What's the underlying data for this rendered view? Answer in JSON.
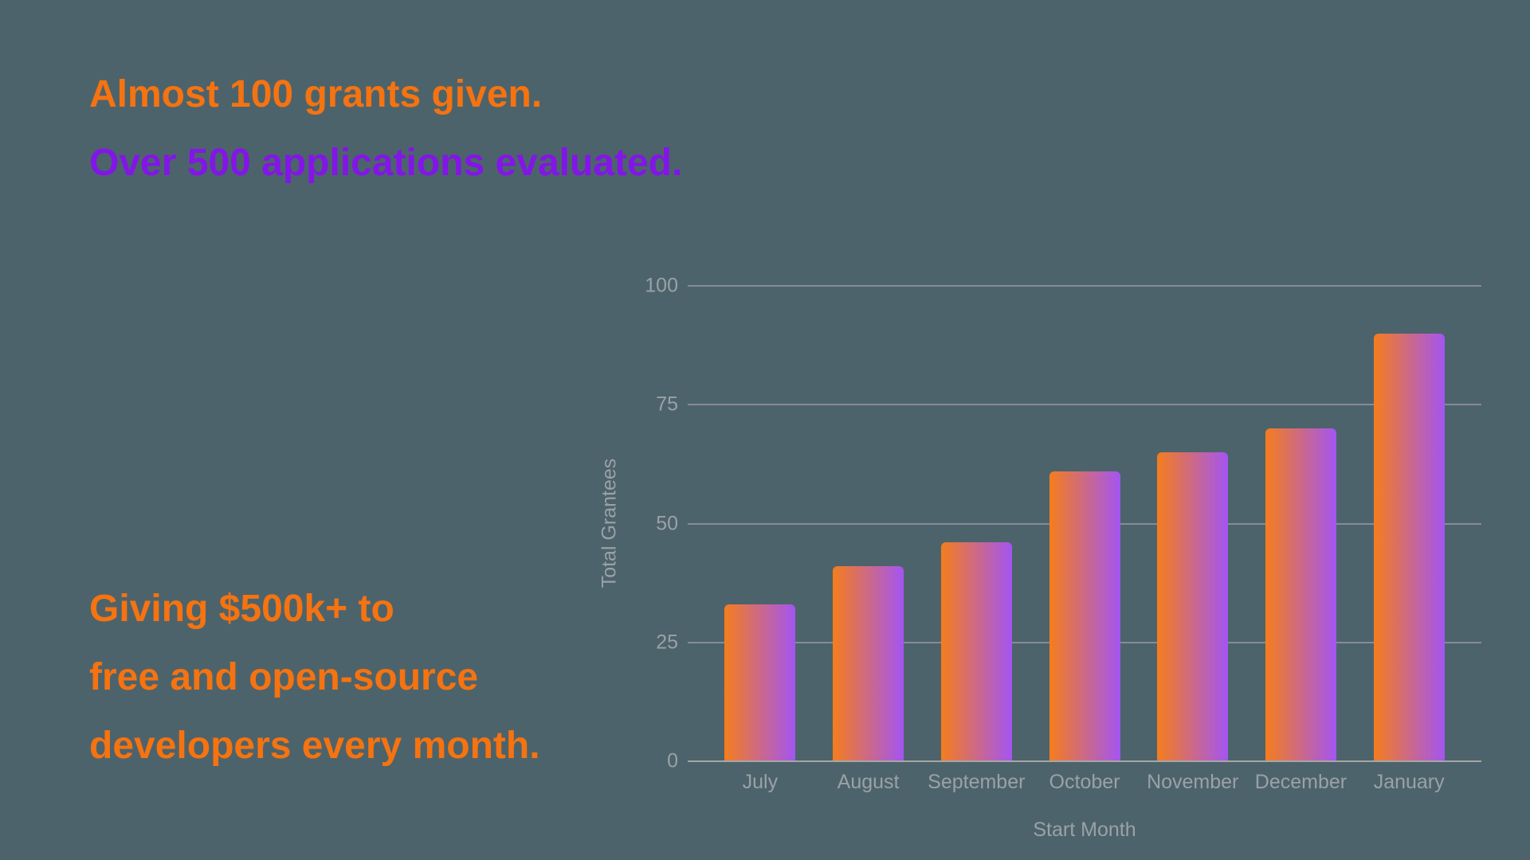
{
  "page": {
    "background_color": "#4d636b"
  },
  "hero": {
    "line1": {
      "text": "Almost 100 grants given.",
      "color": "#f57310"
    },
    "line2": {
      "text": "Over 500 applications evaluated.",
      "color": "#8315e8"
    }
  },
  "footer_block": {
    "color": "#f57310",
    "lines": [
      "Giving $500k+ to",
      "free and open-source",
      "developers every month."
    ]
  },
  "chart_data": {
    "type": "bar",
    "categories": [
      "July",
      "August",
      "September",
      "October",
      "November",
      "December",
      "January"
    ],
    "values": [
      33,
      41,
      46,
      61,
      65,
      70,
      90
    ],
    "title": "",
    "xlabel": "Start Month",
    "ylabel": "Total Grantees",
    "ylim": [
      0,
      100
    ],
    "yticks": [
      0,
      25,
      50,
      75,
      100
    ],
    "grid": true,
    "legend": "none",
    "colors": {
      "bar_gradient_left": "#f57d1d",
      "bar_gradient_right": "#a355f2",
      "gridline": "#a79fb2",
      "axis_line": "#a6a6a6",
      "tick_text": "#9aa1a7"
    }
  }
}
